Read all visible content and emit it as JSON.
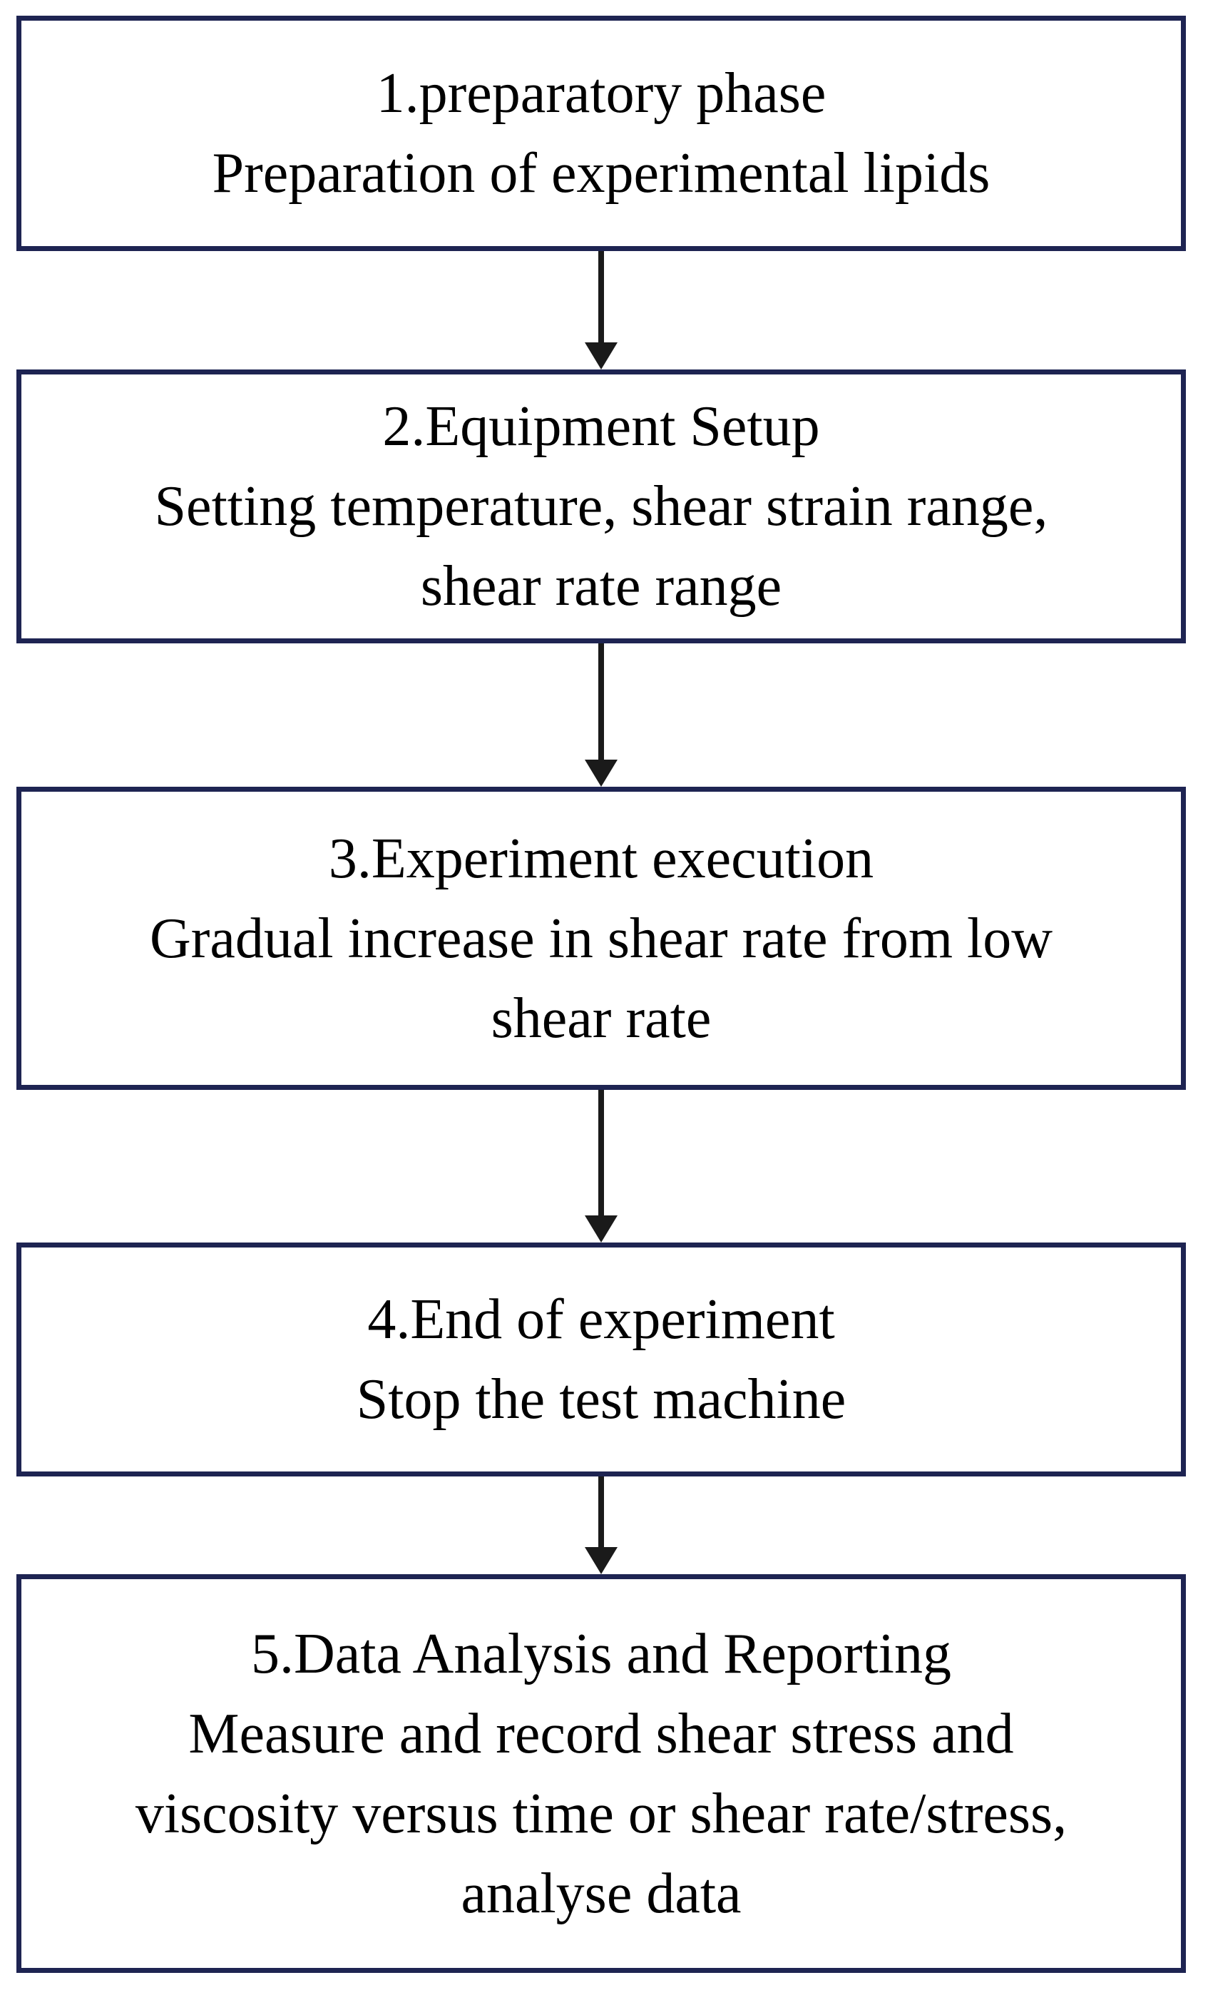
{
  "flowchart": {
    "colors": {
      "background": "#ffffff",
      "border": "#1e2452",
      "arrow": "#1a1a1a",
      "text": "#000000"
    },
    "steps": [
      {
        "lines": [
          "1.preparatory phase",
          "Preparation of experimental lipids"
        ]
      },
      {
        "lines": [
          "2.Equipment Setup",
          "Setting temperature, shear strain range,",
          "shear rate range"
        ]
      },
      {
        "lines": [
          "3.Experiment execution",
          "Gradual increase in shear rate from low",
          "shear rate"
        ]
      },
      {
        "lines": [
          "4.End of experiment",
          "Stop the test machine"
        ]
      },
      {
        "lines": [
          "5.Data Analysis and Reporting",
          "Measure and record shear stress and",
          "viscosity versus time or shear rate/stress,",
          "analyse data"
        ]
      }
    ]
  }
}
